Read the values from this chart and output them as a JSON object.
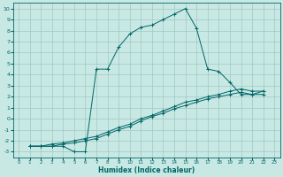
{
  "xlabel": "Humidex (Indice chaleur)",
  "background_color": "#c8e8e4",
  "line_color": "#006666",
  "grid_color": "#a0c8c4",
  "xlim": [
    -0.5,
    23.5
  ],
  "ylim": [
    -3.5,
    10.5
  ],
  "xticks": [
    0,
    1,
    2,
    3,
    4,
    5,
    6,
    7,
    8,
    9,
    10,
    11,
    12,
    13,
    14,
    15,
    16,
    17,
    18,
    19,
    20,
    21,
    22,
    23
  ],
  "yticks": [
    -3,
    -2,
    -1,
    0,
    1,
    2,
    3,
    4,
    5,
    6,
    7,
    8,
    9,
    10
  ],
  "lines": [
    {
      "x": [
        1,
        2,
        3,
        4,
        5,
        6,
        7,
        8,
        9,
        10,
        11,
        12,
        13,
        14,
        15,
        16,
        17,
        18,
        19,
        20,
        21,
        22
      ],
      "y": [
        -2.5,
        -2.5,
        -2.5,
        -2.5,
        -3.0,
        -3.0,
        4.5,
        4.5,
        6.5,
        7.7,
        8.3,
        8.5,
        9.0,
        9.5,
        10.0,
        8.2,
        4.5,
        4.3,
        3.3,
        2.2,
        2.2,
        2.5
      ]
    },
    {
      "x": [
        1,
        2,
        3,
        4,
        5,
        6,
        7,
        8,
        9,
        10,
        11,
        12,
        13,
        14,
        15,
        16,
        17,
        18,
        19,
        20,
        21,
        22
      ],
      "y": [
        -2.5,
        -2.5,
        -2.3,
        -2.2,
        -2.0,
        -1.8,
        -1.6,
        -1.2,
        -0.8,
        -0.5,
        0.0,
        0.3,
        0.7,
        1.1,
        1.5,
        1.7,
        2.0,
        2.2,
        2.5,
        2.7,
        2.5,
        2.5
      ]
    },
    {
      "x": [
        1,
        2,
        3,
        4,
        5,
        6,
        7,
        8,
        9,
        10,
        11,
        12,
        13,
        14,
        15,
        16,
        17,
        18,
        19,
        20,
        21,
        22
      ],
      "y": [
        -2.5,
        -2.5,
        -2.5,
        -2.3,
        -2.2,
        -2.0,
        -1.8,
        -1.4,
        -1.0,
        -0.7,
        -0.2,
        0.2,
        0.5,
        0.9,
        1.2,
        1.5,
        1.8,
        2.0,
        2.2,
        2.4,
        2.2,
        2.2
      ]
    }
  ]
}
